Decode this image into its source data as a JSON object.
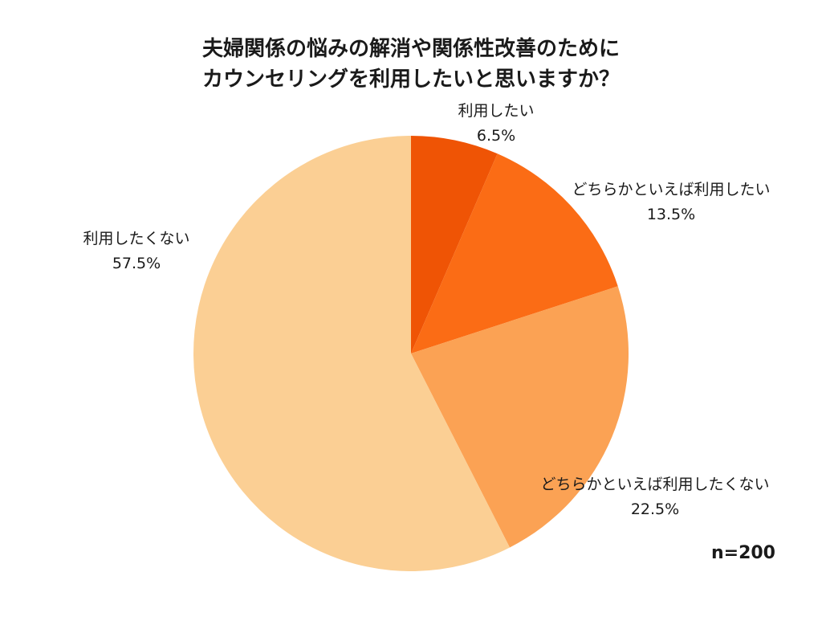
{
  "chart_data": {
    "type": "pie",
    "title_lines": [
      "夫婦関係の悩みの解消や関係性改善のために",
      "カウンセリングを利用したいと思いますか？"
    ],
    "slices": [
      {
        "label": "利用したい",
        "value": 6.5,
        "value_label": "6.5%",
        "color": "#ef5405"
      },
      {
        "label": "どちらかといえば利用したい",
        "value": 13.5,
        "value_label": "13.5%",
        "color": "#fb6c15"
      },
      {
        "label": "どちらかといえば利用したくない",
        "value": 22.5,
        "value_label": "22.5%",
        "color": "#fba254"
      },
      {
        "label": "利用したくない",
        "value": 57.5,
        "value_label": "57.5%",
        "color": "#fbcf94"
      }
    ],
    "start": "12 o'clock",
    "direction": "clockwise",
    "note": "n=200"
  }
}
